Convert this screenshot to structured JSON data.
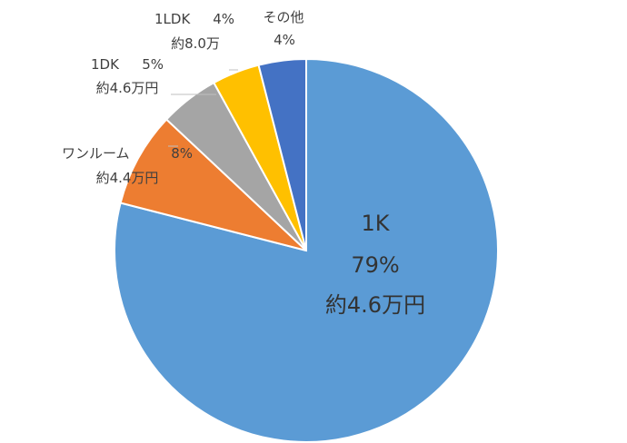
{
  "chart_data": {
    "type": "pie",
    "slices": [
      {
        "name": "1K",
        "percent_label": "79%",
        "rent_label": "約4.6万円",
        "value": 79,
        "color": "#5b9bd5"
      },
      {
        "name": "ワンルーム",
        "percent_label": "8%",
        "rent_label": "約4.4万円",
        "value": 8,
        "color": "#ed7d31"
      },
      {
        "name": "1DK",
        "percent_label": "5%",
        "rent_label": "約4.6万円",
        "value": 5,
        "color": "#a5a5a5"
      },
      {
        "name": "1LDK",
        "percent_label": "4%",
        "rent_label": "約8.0万",
        "value": 4,
        "color": "#ffc000"
      },
      {
        "name": "その他",
        "percent_label": "4%",
        "rent_label": "",
        "value": 4,
        "color": "#4472c4"
      }
    ],
    "slice_border_color": "#ffffff",
    "leader_line_color": "#bfbfbf",
    "label_color": "#404040"
  }
}
